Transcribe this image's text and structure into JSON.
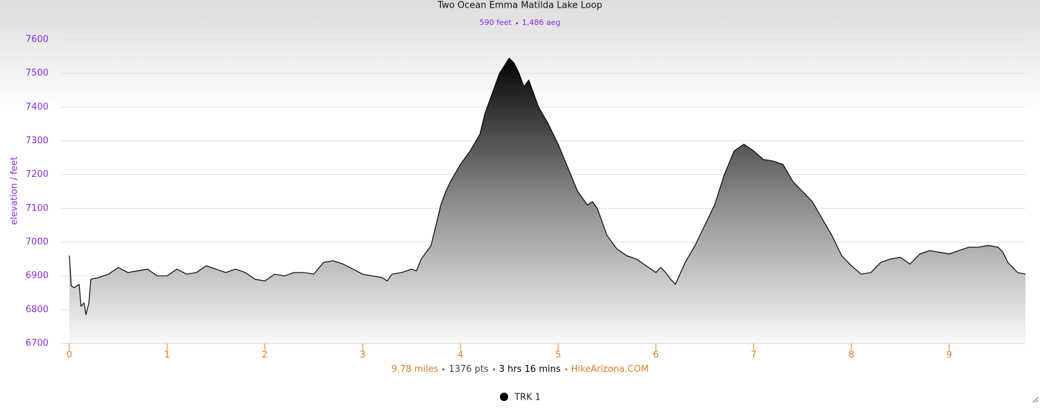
{
  "chart_data": {
    "type": "area",
    "title": "Two Ocean Emma Matilda Lake Loop",
    "subtitle": {
      "distance_gain": "590 feet",
      "aeg": "1,486 aeg"
    },
    "y_label": "elevation / feet",
    "footer": {
      "distance": "9.78 miles",
      "points": "1376 pts",
      "duration": "3 hrs 16 mins",
      "site": "HikeArizona.COM"
    },
    "xlim": [
      0,
      9.78
    ],
    "xticks": [
      0,
      1,
      2,
      3,
      4,
      5,
      6,
      7,
      8,
      9
    ],
    "ylim": [
      6700,
      7600
    ],
    "yticks": [
      6700,
      6800,
      6900,
      7000,
      7100,
      7200,
      7300,
      7400,
      7500,
      7600
    ],
    "grid": true,
    "x": [
      0,
      0.02,
      0.05,
      0.1,
      0.12,
      0.15,
      0.17,
      0.2,
      0.22,
      0.3,
      0.4,
      0.5,
      0.6,
      0.7,
      0.8,
      0.9,
      1.0,
      1.1,
      1.2,
      1.3,
      1.4,
      1.5,
      1.6,
      1.7,
      1.8,
      1.9,
      2.0,
      2.1,
      2.2,
      2.3,
      2.4,
      2.5,
      2.6,
      2.7,
      2.8,
      2.9,
      3.0,
      3.1,
      3.2,
      3.25,
      3.3,
      3.4,
      3.5,
      3.55,
      3.6,
      3.7,
      3.75,
      3.8,
      3.85,
      3.9,
      4.0,
      4.1,
      4.2,
      4.25,
      4.3,
      4.35,
      4.4,
      4.5,
      4.55,
      4.6,
      4.65,
      4.7,
      4.8,
      4.9,
      5.0,
      5.1,
      5.2,
      5.3,
      5.35,
      5.4,
      5.5,
      5.6,
      5.7,
      5.8,
      5.9,
      6.0,
      6.05,
      6.1,
      6.15,
      6.2,
      6.3,
      6.4,
      6.5,
      6.6,
      6.7,
      6.8,
      6.9,
      7.0,
      7.1,
      7.2,
      7.3,
      7.4,
      7.5,
      7.6,
      7.7,
      7.8,
      7.9,
      8.0,
      8.1,
      8.2,
      8.3,
      8.4,
      8.5,
      8.6,
      8.7,
      8.8,
      8.9,
      9.0,
      9.1,
      9.2,
      9.3,
      9.4,
      9.5,
      9.55,
      9.6,
      9.7,
      9.78
    ],
    "series": [
      {
        "name": "TRK 1",
        "color": "#000000",
        "values": [
          6960,
          6870,
          6865,
          6875,
          6810,
          6820,
          6785,
          6820,
          6890,
          6895,
          6905,
          6925,
          6910,
          6915,
          6920,
          6900,
          6900,
          6920,
          6905,
          6910,
          6930,
          6920,
          6910,
          6920,
          6910,
          6890,
          6885,
          6905,
          6900,
          6910,
          6910,
          6905,
          6940,
          6945,
          6935,
          6920,
          6905,
          6900,
          6895,
          6885,
          6905,
          6910,
          6920,
          6915,
          6950,
          6990,
          7050,
          7110,
          7150,
          7180,
          7230,
          7270,
          7320,
          7380,
          7420,
          7460,
          7500,
          7545,
          7530,
          7500,
          7460,
          7480,
          7400,
          7350,
          7290,
          7220,
          7150,
          7110,
          7120,
          7100,
          7020,
          6980,
          6960,
          6950,
          6930,
          6910,
          6925,
          6910,
          6890,
          6875,
          6940,
          6990,
          7050,
          7110,
          7200,
          7270,
          7290,
          7270,
          7245,
          7240,
          7230,
          7180,
          7150,
          7120,
          7070,
          7020,
          6960,
          6930,
          6905,
          6910,
          6940,
          6950,
          6955,
          6935,
          6965,
          6975,
          6970,
          6965,
          6975,
          6985,
          6985,
          6990,
          6985,
          6970,
          6940,
          6910,
          6905
        ]
      }
    ]
  }
}
